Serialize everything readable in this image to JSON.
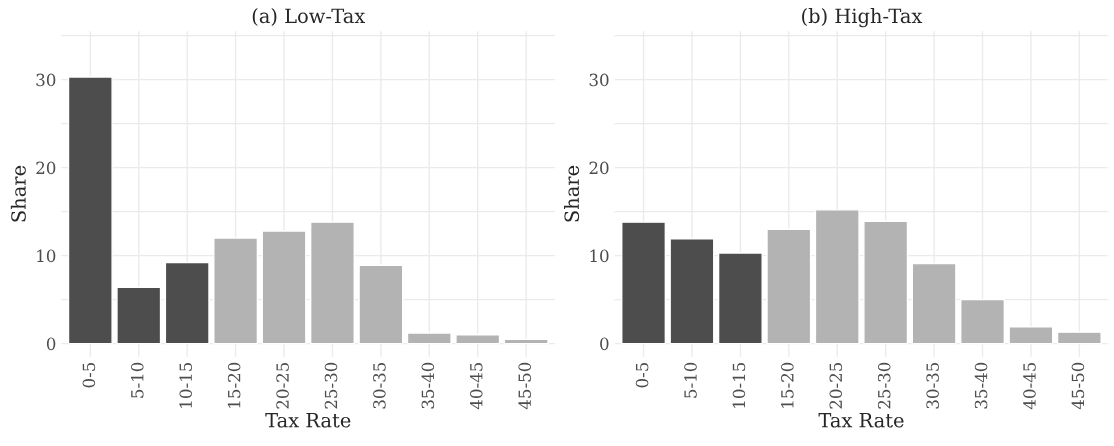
{
  "chart_data": [
    {
      "type": "bar",
      "title": "(a) Low-Tax",
      "xlabel": "Tax Rate",
      "ylabel": "Share",
      "categories": [
        "0-5",
        "5-10",
        "10-15",
        "15-20",
        "20-25",
        "25-30",
        "30-35",
        "35-40",
        "40-45",
        "45-50"
      ],
      "values": [
        30.3,
        6.4,
        9.2,
        12.0,
        12.8,
        13.8,
        8.9,
        1.2,
        1.0,
        0.5
      ],
      "colors": [
        "#4d4d4d",
        "#4d4d4d",
        "#4d4d4d",
        "#b3b3b3",
        "#b3b3b3",
        "#b3b3b3",
        "#b3b3b3",
        "#b3b3b3",
        "#b3b3b3",
        "#b3b3b3"
      ],
      "ylim": [
        -1.5,
        35.5
      ],
      "yticks": [
        0,
        {
          "value": 5,
          "label": null
        },
        10,
        {
          "value": 15,
          "label": null
        },
        20,
        {
          "value": 25,
          "label": null
        },
        30,
        {
          "value": 35,
          "label": null
        }
      ],
      "grid": true
    },
    {
      "type": "bar",
      "title": "(b) High-Tax",
      "xlabel": "Tax Rate",
      "ylabel": "Share",
      "categories": [
        "0-5",
        "5-10",
        "10-15",
        "15-20",
        "20-25",
        "25-30",
        "30-35",
        "35-40",
        "40-45",
        "45-50"
      ],
      "values": [
        13.8,
        11.9,
        10.3,
        13.0,
        15.2,
        13.9,
        9.1,
        5.0,
        1.9,
        1.3
      ],
      "colors": [
        "#4d4d4d",
        "#4d4d4d",
        "#4d4d4d",
        "#b3b3b3",
        "#b3b3b3",
        "#b3b3b3",
        "#b3b3b3",
        "#b3b3b3",
        "#b3b3b3",
        "#b3b3b3"
      ],
      "ylim": [
        -1.5,
        35.5
      ],
      "yticks": [
        0,
        {
          "value": 5,
          "label": null
        },
        10,
        {
          "value": 15,
          "label": null
        },
        20,
        {
          "value": 25,
          "label": null
        },
        30,
        {
          "value": 35,
          "label": null
        }
      ],
      "grid": true
    }
  ]
}
